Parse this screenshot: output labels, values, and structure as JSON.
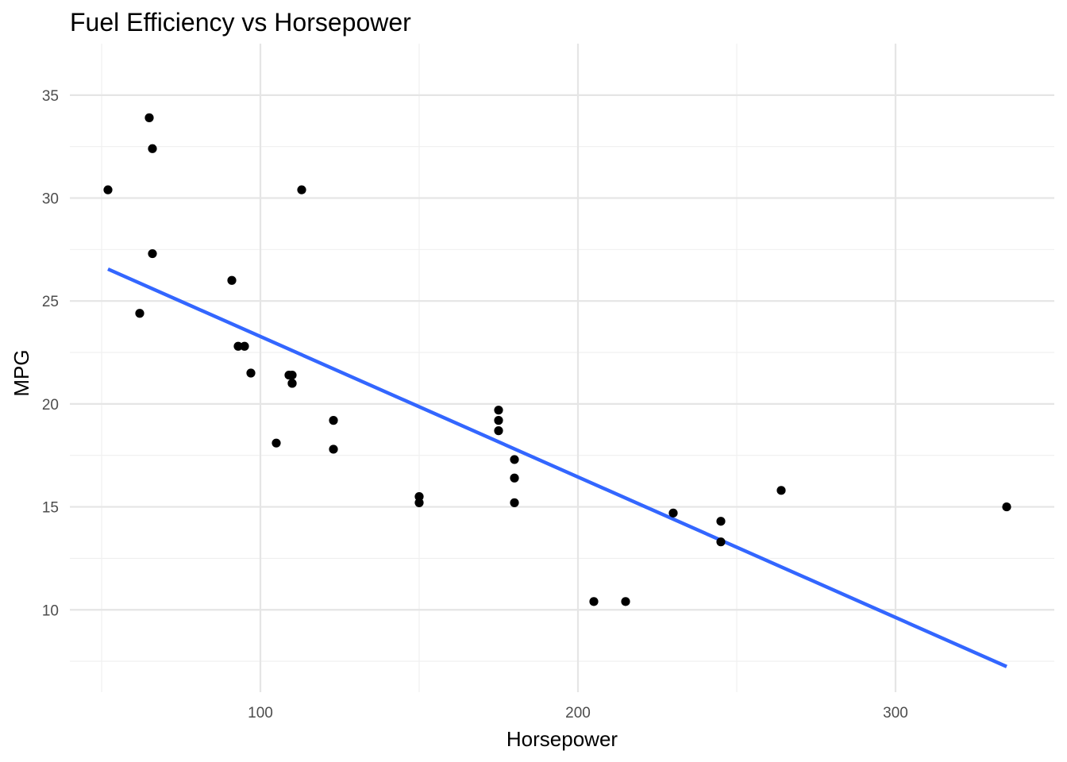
{
  "chart_data": {
    "type": "scatter",
    "title": "Fuel Efficiency vs Horsepower",
    "xlabel": "Horsepower",
    "ylabel": "MPG",
    "xlim": [
      40,
      350
    ],
    "ylim": [
      6.0,
      37.5
    ],
    "x_ticks": [
      100,
      200,
      300
    ],
    "x_tick_labels": [
      "100",
      "200",
      "300"
    ],
    "y_ticks": [
      10,
      15,
      20,
      25,
      30,
      35
    ],
    "y_tick_labels": [
      "10",
      "15",
      "20",
      "25",
      "30",
      "35"
    ],
    "x_minor_ticks": [
      50,
      150,
      250
    ],
    "y_minor_ticks": [
      7.5,
      12.5,
      17.5,
      22.5,
      27.5,
      32.5
    ],
    "grid": true,
    "legend": "none",
    "point_color": "#000000",
    "series": [
      {
        "x": [
          110,
          110,
          93,
          110,
          175,
          105,
          245,
          62,
          95,
          123,
          123,
          180,
          180,
          180,
          205,
          215,
          230,
          66,
          52,
          65,
          97,
          150,
          150,
          245,
          175,
          66,
          91,
          113,
          264,
          175,
          335,
          109
        ],
        "y": [
          21.0,
          21.0,
          22.8,
          21.4,
          18.7,
          18.1,
          14.3,
          24.4,
          22.8,
          19.2,
          17.8,
          16.4,
          17.3,
          15.2,
          10.4,
          10.4,
          14.7,
          32.4,
          30.4,
          33.9,
          21.5,
          15.5,
          15.2,
          13.3,
          19.2,
          27.3,
          26.0,
          30.4,
          15.8,
          19.7,
          15.0,
          21.4
        ]
      }
    ],
    "trend_line": {
      "type": "linear",
      "color": "#3366ff",
      "x": [
        52,
        335
      ],
      "y": [
        26.55,
        7.24
      ]
    }
  }
}
